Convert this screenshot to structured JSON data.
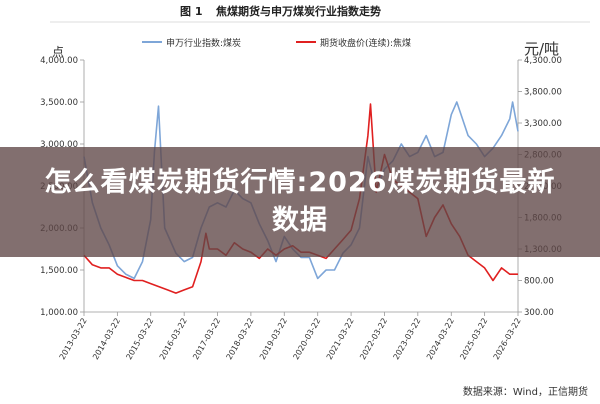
{
  "banner": {
    "title": "怎么看煤炭期货行情:2026煤炭期货最新数据"
  },
  "chart_data": {
    "type": "line",
    "figure_label": "图 1",
    "title": "焦煤期货与申万煤炭行业指数走势",
    "source": "数据来源：Wind，正信期货",
    "left_axis": {
      "unit": "点",
      "ylim": [
        1000,
        4000
      ],
      "ticks": [
        "1,000.00",
        "1,500.00",
        "2,000.00",
        "2,500.00",
        "3,000.00",
        "3,500.00",
        "4,000.00"
      ]
    },
    "right_axis": {
      "unit": "元/吨",
      "ylim": [
        300,
        4300
      ],
      "ticks": [
        "300.00",
        "800.00",
        "1,300.00",
        "1,800.00",
        "2,300.00",
        "2,800.00",
        "3,300.00",
        "3,800.00",
        "4,300.00"
      ]
    },
    "x_range": [
      "2013-03-22",
      "2026-03-22"
    ],
    "x_ticks": [
      "2013-03-22",
      "2014-03-22",
      "2015-03-22",
      "2016-03-22",
      "2017-03-22",
      "2018-03-22",
      "2019-03-22",
      "2020-03-22",
      "2021-03-22",
      "2022-03-22",
      "2023-03-22",
      "2024-03-22",
      "2025-03-22",
      "2026-03-22"
    ],
    "grid": false,
    "legend_position": "top",
    "colors": {
      "index": "#7ea6d8",
      "futures": "#e02020"
    },
    "series": [
      {
        "name": "申万行业指数:煤炭",
        "axis": "left",
        "x": [
          "2013-03-22",
          "2013-06-22",
          "2013-09-22",
          "2013-12-22",
          "2014-03-22",
          "2014-06-22",
          "2014-09-22",
          "2014-12-22",
          "2015-03-22",
          "2015-05-01",
          "2015-06-15",
          "2015-08-22",
          "2015-12-22",
          "2016-03-22",
          "2016-06-22",
          "2016-09-22",
          "2016-12-22",
          "2017-03-22",
          "2017-06-22",
          "2017-09-22",
          "2017-12-22",
          "2018-03-22",
          "2018-06-22",
          "2018-09-22",
          "2018-12-22",
          "2019-03-22",
          "2019-06-22",
          "2019-09-22",
          "2019-12-22",
          "2020-03-22",
          "2020-06-22",
          "2020-09-22",
          "2020-12-22",
          "2021-03-22",
          "2021-06-22",
          "2021-09-22",
          "2021-12-22",
          "2022-03-22",
          "2022-06-22",
          "2022-09-22",
          "2022-12-22",
          "2023-03-22",
          "2023-06-22",
          "2023-09-22",
          "2023-12-22",
          "2024-03-22",
          "2024-05-22",
          "2024-09-22",
          "2024-12-22",
          "2025-03-22",
          "2025-06-22",
          "2025-09-22",
          "2025-12-22",
          "2026-01-22",
          "2026-03-22"
        ],
        "values": [
          2850,
          2300,
          2000,
          1800,
          1550,
          1450,
          1400,
          1600,
          2100,
          2900,
          3450,
          2000,
          1700,
          1600,
          1650,
          2000,
          2250,
          2300,
          2250,
          2450,
          2350,
          2300,
          2050,
          1850,
          1600,
          1900,
          1750,
          1650,
          1650,
          1400,
          1500,
          1500,
          1700,
          1800,
          2000,
          2850,
          2450,
          2700,
          2800,
          3000,
          2850,
          2900,
          3100,
          2850,
          2900,
          3350,
          3500,
          3100,
          3000,
          2850,
          2950,
          3100,
          3300,
          3500,
          3150
        ]
      },
      {
        "name": "期货收盘价(连续):焦煤",
        "axis": "right",
        "x": [
          "2013-03-22",
          "2013-06-22",
          "2013-09-22",
          "2013-12-22",
          "2014-03-22",
          "2014-06-22",
          "2014-09-22",
          "2014-12-22",
          "2015-03-22",
          "2015-06-22",
          "2015-09-22",
          "2015-12-22",
          "2016-03-22",
          "2016-06-22",
          "2016-09-22",
          "2016-11-15",
          "2016-12-22",
          "2017-03-22",
          "2017-06-22",
          "2017-09-22",
          "2017-12-22",
          "2018-03-22",
          "2018-06-22",
          "2018-09-22",
          "2018-12-22",
          "2019-03-22",
          "2019-06-22",
          "2019-09-22",
          "2019-12-22",
          "2020-03-22",
          "2020-06-22",
          "2020-09-22",
          "2020-12-22",
          "2021-03-22",
          "2021-06-22",
          "2021-09-22",
          "2021-10-20",
          "2021-12-22",
          "2022-03-22",
          "2022-06-22",
          "2022-09-22",
          "2022-12-22",
          "2023-03-22",
          "2023-06-22",
          "2023-09-22",
          "2023-12-22",
          "2024-03-22",
          "2024-06-22",
          "2024-09-22",
          "2024-12-22",
          "2025-03-22",
          "2025-06-22",
          "2025-09-22",
          "2025-12-22",
          "2026-03-22"
        ],
        "values": [
          1200,
          1050,
          1000,
          1000,
          900,
          850,
          800,
          800,
          750,
          700,
          650,
          600,
          650,
          700,
          1100,
          1550,
          1300,
          1300,
          1200,
          1400,
          1300,
          1250,
          1150,
          1300,
          1200,
          1300,
          1350,
          1250,
          1250,
          1200,
          1150,
          1300,
          1450,
          1600,
          2100,
          3100,
          3600,
          2200,
          2800,
          2400,
          2300,
          2200,
          2100,
          1500,
          1800,
          2000,
          1700,
          1500,
          1200,
          1100,
          1000,
          800,
          1000,
          900,
          900
        ]
      }
    ]
  }
}
